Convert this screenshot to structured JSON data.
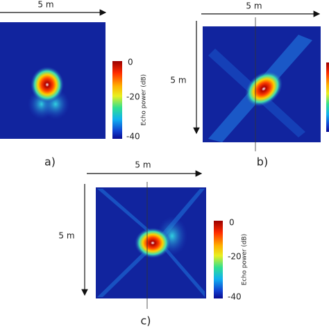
{
  "panels": [
    {
      "label": "a)",
      "width_label": "5 m",
      "colorbar": {
        "title": "Echo power (dB)",
        "ticks": [
          "0",
          "-20",
          "-40"
        ]
      }
    },
    {
      "label": "b)",
      "width_label": "5 m",
      "height_label": "5 m"
    },
    {
      "label": "c)",
      "width_label": "5 m",
      "height_label": "5 m",
      "colorbar": {
        "title": "Echo power (dB)",
        "ticks": [
          "0",
          "-20",
          "-40"
        ]
      }
    }
  ]
}
